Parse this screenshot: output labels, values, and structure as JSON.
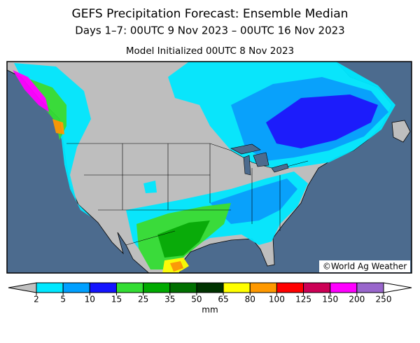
{
  "header": {
    "title": "GEFS Precipitation Forecast: Ensemble Median",
    "subtitle": "Days 1–7: 00UTC 9 Nov 2023 – 00UTC 16 Nov 2023",
    "initialized": "Model Initialized 00UTC 8 Nov 2023"
  },
  "map": {
    "credit": "©World Ag Weather"
  },
  "legend": {
    "unit": "mm",
    "ticks": [
      2,
      5,
      10,
      15,
      25,
      35,
      50,
      65,
      80,
      100,
      125,
      150,
      200,
      250
    ],
    "under_color": "#c0c0c0",
    "over_color": "#ffffff",
    "colors": [
      "#00e8ff",
      "#00a0ff",
      "#1414ff",
      "#33dd33",
      "#00aa00",
      "#007000",
      "#003300",
      "#ffff00",
      "#ff9900",
      "#ff0000",
      "#cc0055",
      "#ff00ff",
      "#9966cc"
    ]
  }
}
